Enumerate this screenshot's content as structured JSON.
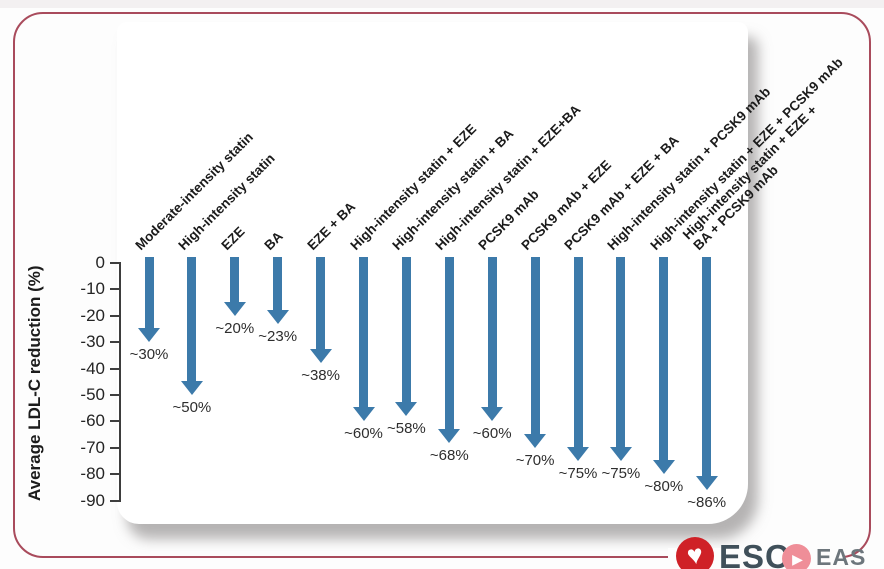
{
  "chart_data": {
    "type": "bar",
    "title": "",
    "xlabel": "",
    "ylabel": "Average LDL-C reduction (%)",
    "ylim": [
      0,
      -90
    ],
    "yticks": [
      0,
      -10,
      -20,
      -30,
      -40,
      -50,
      -60,
      -70,
      -80,
      -90
    ],
    "grid": false,
    "legend": "none",
    "bar_style": "downward-arrows",
    "arrow_color": "#3c7aaa",
    "categories": [
      "Moderate-intensity statin",
      "High-intensity statin",
      "EZE",
      "BA",
      "EZE + BA",
      "High-intensity statin + EZE",
      "High-intensity statin + BA",
      "High-intensity statin + EZE+BA",
      "PCSK9 mAb",
      "PCSK9 mAb + EZE",
      "PCSK9 mAb + EZE + BA",
      "High-intensity statin + PCSK9 mAb",
      "High-intensity statin + EZE + PCSK9 mAb",
      "High-intensity statin + EZE + BA + PCSK9 mAb"
    ],
    "series": [
      {
        "label": "Moderate-intensity statin",
        "value": -30,
        "value_label": "~30%"
      },
      {
        "label": "High-intensity statin",
        "value": -50,
        "value_label": "~50%"
      },
      {
        "label": "EZE",
        "value": -20,
        "value_label": "~20%"
      },
      {
        "label": "BA",
        "value": -23,
        "value_label": "~23%"
      },
      {
        "label": "EZE + BA",
        "value": -38,
        "value_label": "~38%"
      },
      {
        "label": "High-intensity statin + EZE",
        "value": -60,
        "value_label": "~60%"
      },
      {
        "label": "High-intensity statin + BA",
        "value": -58,
        "value_label": "~58%"
      },
      {
        "label": "High-intensity statin + EZE+BA",
        "value": -68,
        "value_label": "~68%"
      },
      {
        "label": "PCSK9 mAb",
        "value": -60,
        "value_label": "~60%"
      },
      {
        "label": "PCSK9 mAb + EZE",
        "value": -70,
        "value_label": "~70%"
      },
      {
        "label": "PCSK9 mAb + EZE + BA",
        "value": -75,
        "value_label": "~75%"
      },
      {
        "label": "High-intensity statin + PCSK9 mAb",
        "value": -75,
        "value_label": "~75%"
      },
      {
        "label": "High-intensity statin + EZE + PCSK9 mAb",
        "value": -80,
        "value_label": "~80%"
      },
      {
        "label": "High-intensity statin + EZE + BA + PCSK9 mAb",
        "label_lines": [
          "High-intensity statin + EZE +",
          "BA + PCSK9 mAb"
        ],
        "value": -86,
        "value_label": "~86%"
      }
    ]
  },
  "frame": {
    "border_color": "#a94b5c"
  },
  "footer": {
    "esc": {
      "label": "ESC",
      "icon": "heart-icon",
      "circle_color": "#cf2127",
      "heart_glyph": "♥"
    },
    "eas": {
      "label": "EAS",
      "icon": "swoosh-icon",
      "circle_color": "#ef8e98",
      "swoosh_glyph": "▶"
    }
  }
}
